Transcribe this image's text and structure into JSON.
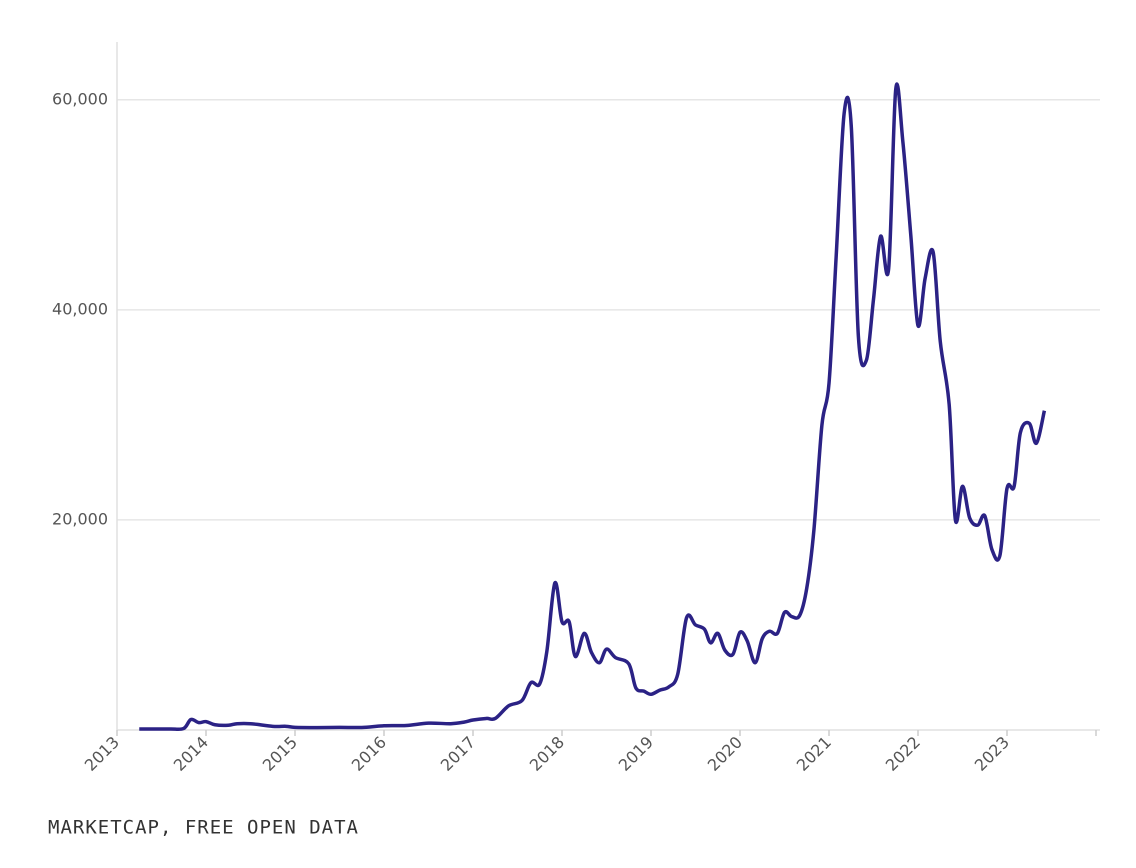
{
  "chart_data": {
    "type": "line",
    "source": "MARKETCAP, FREE OPEN DATA",
    "x": [
      2013.25,
      2013.4,
      2013.6,
      2013.75,
      2013.83,
      2013.92,
      2014.0,
      2014.1,
      2014.25,
      2014.35,
      2014.5,
      2014.75,
      2014.9,
      2015.0,
      2015.25,
      2015.5,
      2015.75,
      2016.0,
      2016.25,
      2016.5,
      2016.75,
      2016.9,
      2017.0,
      2017.15,
      2017.25,
      2017.4,
      2017.55,
      2017.65,
      2017.75,
      2017.83,
      2017.92,
      2018.0,
      2018.08,
      2018.15,
      2018.25,
      2018.33,
      2018.42,
      2018.5,
      2018.6,
      2018.75,
      2018.83,
      2018.92,
      2019.0,
      2019.1,
      2019.2,
      2019.3,
      2019.4,
      2019.5,
      2019.6,
      2019.67,
      2019.75,
      2019.83,
      2019.92,
      2020.0,
      2020.08,
      2020.17,
      2020.25,
      2020.33,
      2020.42,
      2020.5,
      2020.58,
      2020.67,
      2020.75,
      2020.83,
      2020.92,
      2021.0,
      2021.08,
      2021.17,
      2021.25,
      2021.33,
      2021.42,
      2021.5,
      2021.58,
      2021.67,
      2021.75,
      2021.83,
      2021.92,
      2022.0,
      2022.08,
      2022.17,
      2022.25,
      2022.35,
      2022.42,
      2022.5,
      2022.58,
      2022.67,
      2022.75,
      2022.83,
      2022.92,
      2023.0,
      2023.08,
      2023.15,
      2023.25,
      2023.33,
      2023.42
    ],
    "series": [
      {
        "color": "#2b2285",
        "values": [
          100,
          100,
          100,
          150,
          1000,
          700,
          800,
          500,
          450,
          600,
          600,
          350,
          350,
          250,
          230,
          250,
          240,
          400,
          430,
          650,
          600,
          750,
          950,
          1100,
          1100,
          2300,
          2800,
          4500,
          4400,
          7500,
          14000,
          10300,
          10300,
          7000,
          9200,
          7400,
          6400,
          7700,
          6900,
          6300,
          4000,
          3700,
          3400,
          3800,
          4100,
          5300,
          10700,
          10000,
          9600,
          8300,
          9200,
          7600,
          7200,
          9300,
          8500,
          6400,
          8700,
          9400,
          9200,
          11200,
          10800,
          10900,
          13500,
          19000,
          29000,
          33000,
          45000,
          58700,
          57500,
          37500,
          35200,
          41000,
          47000,
          43900,
          61000,
          56000,
          47000,
          38500,
          43000,
          45500,
          37000,
          31000,
          20000,
          23200,
          20200,
          19500,
          20400,
          17200,
          16600,
          23000,
          23200,
          28300,
          29200,
          27300,
          30400
        ]
      }
    ],
    "xlim": [
      2013,
      2024
    ],
    "xticks": [
      2013,
      2014,
      2015,
      2016,
      2017,
      2018,
      2019,
      2020,
      2021,
      2022,
      2023
    ],
    "ylim": [
      0,
      65500
    ],
    "yticks": [
      {
        "value": 20000,
        "label": "20,000"
      },
      {
        "value": 40000,
        "label": "40,000"
      },
      {
        "value": 60000,
        "label": "60,000"
      }
    ],
    "grid": true
  }
}
